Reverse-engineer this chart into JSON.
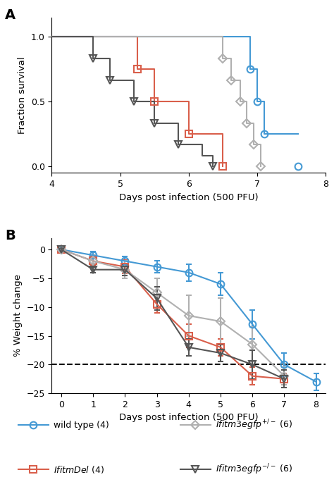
{
  "panel_A": {
    "xlabel": "Days post infection (500 PFU)",
    "ylabel": "Fraction survival",
    "xlim": [
      4,
      8
    ],
    "ylim": [
      -0.05,
      1.15
    ],
    "yticks": [
      0.0,
      0.5,
      1.0
    ],
    "xticks": [
      4,
      5,
      6,
      7,
      8
    ],
    "series": {
      "wildtype": {
        "color": "#4499d4",
        "marker": "o",
        "steps": [
          [
            4,
            1.0
          ],
          [
            6.9,
            1.0
          ],
          [
            6.9,
            0.75
          ],
          [
            7.0,
            0.75
          ],
          [
            7.0,
            0.5
          ],
          [
            7.1,
            0.5
          ],
          [
            7.1,
            0.25
          ],
          [
            7.6,
            0.25
          ]
        ],
        "points": [
          [
            6.9,
            0.75
          ],
          [
            7.0,
            0.5
          ],
          [
            7.1,
            0.25
          ],
          [
            7.6,
            0.0
          ]
        ]
      },
      "IfitmDel": {
        "color": "#d95f4b",
        "marker": "s",
        "steps": [
          [
            4,
            1.0
          ],
          [
            5.25,
            1.0
          ],
          [
            5.25,
            0.75
          ],
          [
            5.5,
            0.75
          ],
          [
            5.5,
            0.5
          ],
          [
            6.0,
            0.5
          ],
          [
            6.0,
            0.25
          ],
          [
            6.5,
            0.25
          ],
          [
            6.5,
            0.0
          ]
        ],
        "points": [
          [
            5.25,
            0.75
          ],
          [
            5.5,
            0.5
          ],
          [
            6.0,
            0.25
          ],
          [
            6.5,
            0.0
          ]
        ]
      },
      "egfp_het": {
        "color": "#b0b0b0",
        "marker": "D",
        "steps": [
          [
            4,
            1.0
          ],
          [
            6.5,
            1.0
          ],
          [
            6.5,
            0.833
          ],
          [
            6.62,
            0.833
          ],
          [
            6.62,
            0.667
          ],
          [
            6.75,
            0.667
          ],
          [
            6.75,
            0.5
          ],
          [
            6.85,
            0.5
          ],
          [
            6.85,
            0.333
          ],
          [
            6.95,
            0.333
          ],
          [
            6.95,
            0.167
          ],
          [
            7.05,
            0.167
          ],
          [
            7.05,
            0.0
          ]
        ],
        "points": [
          [
            6.5,
            0.833
          ],
          [
            6.62,
            0.667
          ],
          [
            6.75,
            0.5
          ],
          [
            6.85,
            0.333
          ],
          [
            6.95,
            0.167
          ],
          [
            7.05,
            0.0
          ]
        ]
      },
      "egfp_ko": {
        "color": "#555555",
        "marker": "v",
        "steps": [
          [
            4,
            1.0
          ],
          [
            4.6,
            1.0
          ],
          [
            4.6,
            0.833
          ],
          [
            4.85,
            0.833
          ],
          [
            4.85,
            0.667
          ],
          [
            5.2,
            0.667
          ],
          [
            5.2,
            0.5
          ],
          [
            5.5,
            0.5
          ],
          [
            5.5,
            0.333
          ],
          [
            5.85,
            0.333
          ],
          [
            5.85,
            0.167
          ],
          [
            6.2,
            0.167
          ],
          [
            6.2,
            0.083
          ],
          [
            6.35,
            0.083
          ],
          [
            6.35,
            0.0
          ]
        ],
        "points": [
          [
            4.6,
            0.833
          ],
          [
            4.85,
            0.667
          ],
          [
            5.2,
            0.5
          ],
          [
            5.5,
            0.333
          ],
          [
            5.85,
            0.167
          ],
          [
            6.35,
            0.0
          ]
        ]
      }
    }
  },
  "panel_B": {
    "xlabel": "Days post infection (500 PFU)",
    "ylabel": "% Weight change",
    "xlim": [
      -0.3,
      8.3
    ],
    "ylim": [
      -25,
      2
    ],
    "yticks": [
      0,
      -5,
      -10,
      -15,
      -20,
      -25
    ],
    "xticks": [
      0,
      1,
      2,
      3,
      4,
      5,
      6,
      7,
      8
    ],
    "dashed_line": -20,
    "series": {
      "wildtype": {
        "color": "#4499d4",
        "marker": "o",
        "x": [
          0,
          1,
          2,
          3,
          4,
          5,
          6,
          7,
          8
        ],
        "y": [
          0,
          -1.0,
          -2.0,
          -3.0,
          -4.0,
          -6.0,
          -13.0,
          -20.0,
          -23.0
        ],
        "yerr": [
          0.3,
          0.6,
          0.8,
          1.0,
          1.5,
          2.0,
          2.5,
          2.0,
          1.5
        ]
      },
      "IfitmDel": {
        "color": "#d95f4b",
        "marker": "s",
        "x": [
          0,
          1,
          2,
          3,
          4,
          5,
          6,
          7
        ],
        "y": [
          0,
          -2.0,
          -3.0,
          -9.5,
          -15.0,
          -17.0,
          -22.0,
          -22.5
        ],
        "yerr": [
          0.3,
          0.8,
          1.2,
          1.5,
          2.0,
          1.5,
          1.5,
          1.0
        ]
      },
      "egfp_het": {
        "color": "#b0b0b0",
        "marker": "D",
        "x": [
          0,
          1,
          2,
          3,
          4,
          5,
          6,
          7
        ],
        "y": [
          0,
          -2.0,
          -3.5,
          -7.5,
          -11.5,
          -12.5,
          -16.5,
          -22.0
        ],
        "yerr": [
          0.3,
          1.0,
          1.5,
          2.5,
          3.5,
          4.0,
          3.0,
          1.5
        ]
      },
      "egfp_ko": {
        "color": "#555555",
        "marker": "v",
        "x": [
          0,
          1,
          2,
          3,
          4,
          5,
          6,
          7
        ],
        "y": [
          0,
          -3.5,
          -3.5,
          -8.5,
          -17.0,
          -18.0,
          -20.0,
          -22.5
        ],
        "yerr": [
          0.3,
          0.5,
          1.0,
          2.0,
          1.5,
          1.5,
          2.5,
          1.5
        ]
      }
    }
  }
}
